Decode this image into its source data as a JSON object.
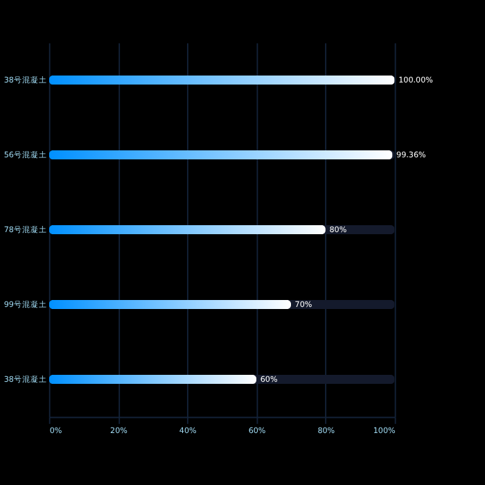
{
  "chart_data": {
    "type": "bar",
    "orientation": "horizontal",
    "categories": [
      "38号混凝土",
      "56号混凝土",
      "78号混凝土",
      "99号混凝土",
      "38号混凝土"
    ],
    "values": [
      100,
      99.36,
      80,
      70,
      60
    ],
    "value_labels": [
      "100.00%",
      "99.36%",
      "80%",
      "70%",
      "60%"
    ],
    "color": "#0090ff",
    "xlim": [
      0,
      100
    ],
    "xticks": [
      {
        "value": 0,
        "label": "0%"
      },
      {
        "value": 20,
        "label": "20%"
      },
      {
        "value": 40,
        "label": "40%"
      },
      {
        "value": 60,
        "label": "60%"
      },
      {
        "value": 80,
        "label": "80%"
      },
      {
        "value": 100,
        "label": "100%"
      }
    ],
    "grid": "x"
  }
}
